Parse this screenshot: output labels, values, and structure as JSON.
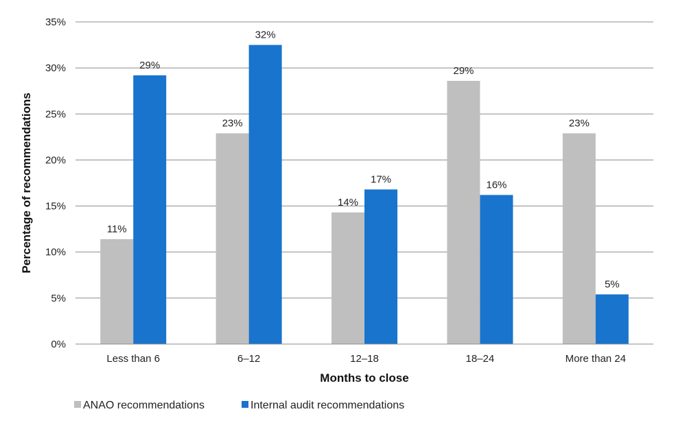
{
  "chart_data": {
    "type": "bar",
    "categories": [
      "Less than 6",
      "6–12",
      "12–18",
      "18–24",
      "More than 24"
    ],
    "series": [
      {
        "name": "ANAO recommendations",
        "values": [
          11.4,
          22.9,
          14.3,
          28.6,
          22.9
        ],
        "labels": [
          "11%",
          "23%",
          "14%",
          "29%",
          "23%"
        ],
        "color": "#bfbfbf"
      },
      {
        "name": "Internal audit recommendations",
        "values": [
          29.2,
          32.5,
          16.8,
          16.2,
          5.4
        ],
        "labels": [
          "29%",
          "32%",
          "17%",
          "16%",
          "5%"
        ],
        "color": "#1874cd"
      }
    ],
    "xlabel": "Months to close",
    "ylabel": "Percentage of recommendations",
    "ylim": [
      0,
      35
    ],
    "yticks": [
      0,
      5,
      10,
      15,
      20,
      25,
      30,
      35
    ],
    "ytick_labels": [
      "0%",
      "5%",
      "10%",
      "15%",
      "20%",
      "25%",
      "30%",
      "35%"
    ],
    "grid": true,
    "legend_position": "bottom-left"
  }
}
